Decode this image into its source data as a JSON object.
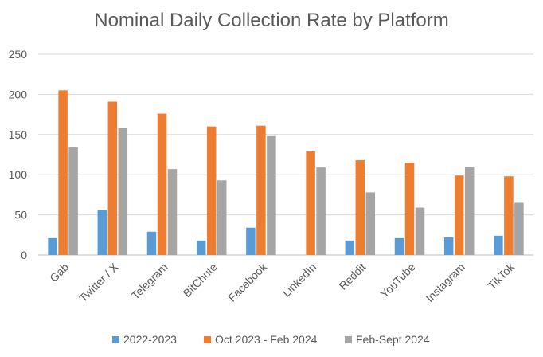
{
  "chart_data": {
    "type": "bar",
    "title": "Nominal Daily Collection Rate by Platform",
    "xlabel": "",
    "ylabel": "",
    "ylim": [
      0,
      250
    ],
    "yticks": [
      0,
      50,
      100,
      150,
      200,
      250
    ],
    "grid": true,
    "legend_position": "bottom",
    "categories": [
      "Gab",
      "Twitter / X",
      "Telegram",
      "BitChute",
      "Facebook",
      "LinkedIn",
      "Reddit",
      "YouTube",
      "Instagram",
      "TikTok"
    ],
    "series": [
      {
        "name": "2022-2023",
        "color": "#5b9bd5",
        "values": [
          21,
          56,
          29,
          18,
          34,
          0,
          18,
          21,
          22,
          24
        ]
      },
      {
        "name": "Oct 2023 - Feb 2024",
        "color": "#ed7d31",
        "values": [
          205,
          191,
          176,
          160,
          161,
          129,
          118,
          115,
          99,
          98
        ]
      },
      {
        "name": "Feb-Sept 2024",
        "color": "#a5a5a5",
        "values": [
          134,
          158,
          107,
          93,
          148,
          109,
          78,
          59,
          110,
          65
        ]
      }
    ]
  },
  "colors": {
    "grid": "#d9d9d9",
    "axis": "#bfbfbf",
    "text": "#595959"
  }
}
